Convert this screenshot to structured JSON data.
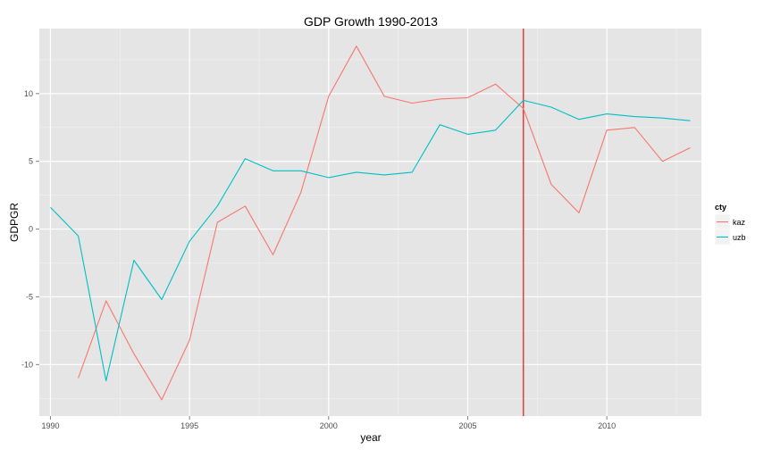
{
  "chart_data": {
    "type": "line",
    "title": "GDP Growth 1990-2013",
    "xlabel": "year",
    "ylabel": "GDPGR",
    "xlim": [
      1989.6,
      2013.4
    ],
    "ylim": [
      -13.8,
      14.8
    ],
    "x_ticks": [
      1990,
      1995,
      2000,
      2005,
      2010
    ],
    "y_ticks": [
      -10,
      -5,
      0,
      5,
      10
    ],
    "grid": true,
    "legend": {
      "title": "cty",
      "position": "right"
    },
    "vline": {
      "x": 2007,
      "color": "#e8323c"
    },
    "series": [
      {
        "name": "kaz",
        "color": "#f8766d",
        "x": [
          1991,
          1992,
          1993,
          1994,
          1995,
          1996,
          1997,
          1998,
          1999,
          2000,
          2001,
          2002,
          2003,
          2004,
          2005,
          2006,
          2007,
          2008,
          2009,
          2010,
          2011,
          2012,
          2013
        ],
        "values": [
          -11.0,
          -5.3,
          -9.2,
          -12.6,
          -8.2,
          0.5,
          1.7,
          -1.9,
          2.7,
          9.8,
          13.5,
          9.8,
          9.3,
          9.6,
          9.7,
          10.7,
          8.9,
          3.3,
          1.2,
          7.3,
          7.5,
          5.0,
          6.0
        ]
      },
      {
        "name": "uzb",
        "color": "#00bfc4",
        "x": [
          1990,
          1991,
          1992,
          1993,
          1994,
          1995,
          1996,
          1997,
          1998,
          1999,
          2000,
          2001,
          2002,
          2003,
          2004,
          2005,
          2006,
          2007,
          2008,
          2009,
          2010,
          2011,
          2012,
          2013
        ],
        "values": [
          1.6,
          -0.5,
          -11.2,
          -2.3,
          -5.2,
          -0.9,
          1.7,
          5.2,
          4.3,
          4.3,
          3.8,
          4.2,
          4.0,
          4.2,
          7.7,
          7.0,
          7.3,
          9.5,
          9.0,
          8.1,
          8.5,
          8.3,
          8.2,
          8.0
        ]
      }
    ]
  }
}
